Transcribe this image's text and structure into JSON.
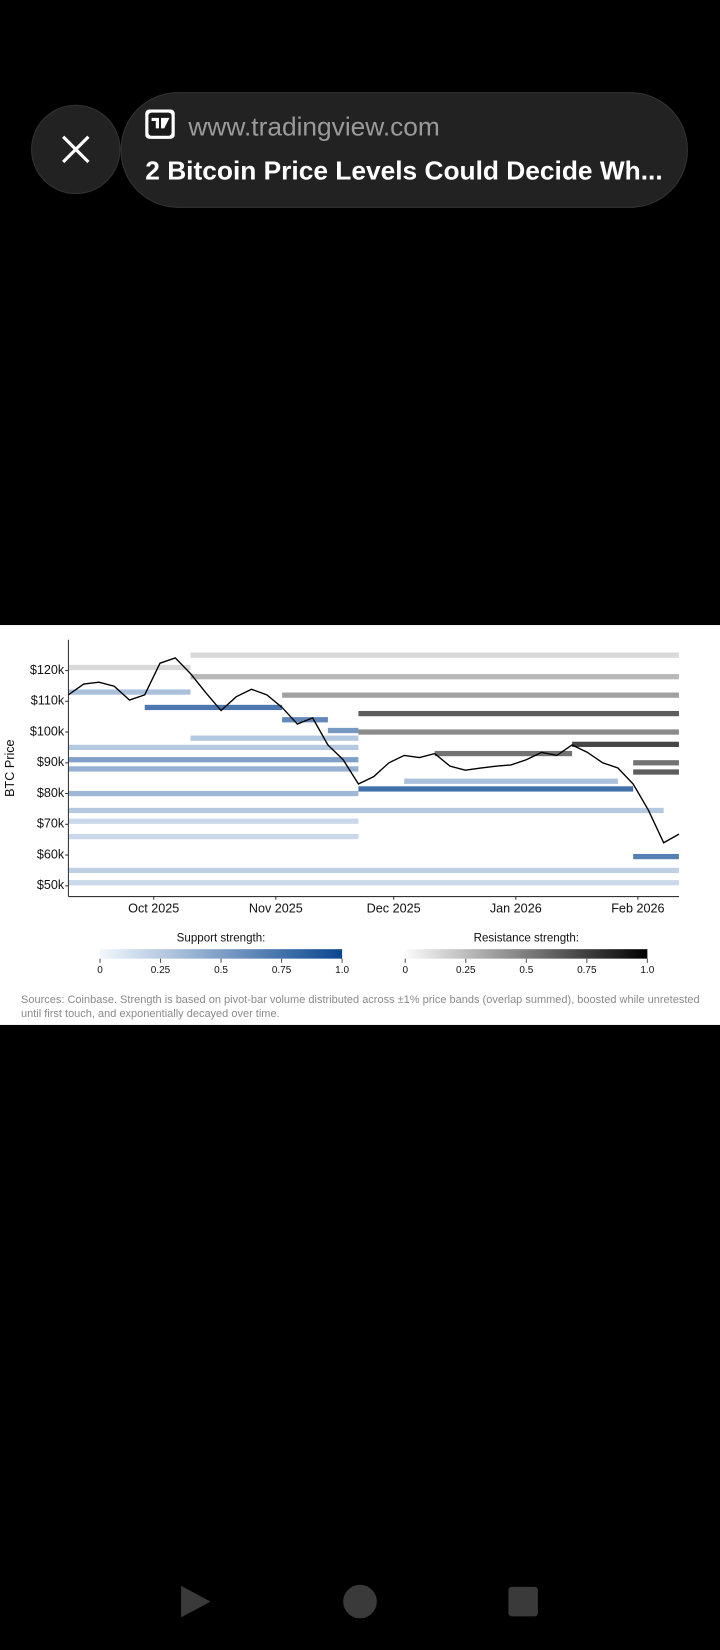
{
  "browser_bar": {
    "url": "www.tradingview.com",
    "title": "2 Bitcoin Price Levels Could Decide Wh..."
  },
  "chart_data": {
    "type": "line",
    "y_label": "BTC Price",
    "xlim": [
      0,
      40
    ],
    "ylim": [
      46500,
      130000
    ],
    "yticks": [
      {
        "value": 50000,
        "label": "$50k"
      },
      {
        "value": 60000,
        "label": "$60k"
      },
      {
        "value": 70000,
        "label": "$70k"
      },
      {
        "value": 80000,
        "label": "$80k"
      },
      {
        "value": 90000,
        "label": "$90k"
      },
      {
        "value": 100000,
        "label": "$100k"
      },
      {
        "value": 110000,
        "label": "$110k"
      },
      {
        "value": 120000,
        "label": "$120k"
      }
    ],
    "xticks": [
      {
        "value": 5.59,
        "label": "Oct 2025"
      },
      {
        "value": 13.59,
        "label": "Nov 2025"
      },
      {
        "value": 21.31,
        "label": "Dec 2025"
      },
      {
        "value": 29.31,
        "label": "Jan 2026"
      },
      {
        "value": 37.31,
        "label": "Feb 2026"
      }
    ],
    "series": [
      {
        "color": "#000000",
        "values": [
          112100,
          115600,
          116200,
          114900,
          110400,
          112100,
          122400,
          124100,
          119000,
          112800,
          107000,
          111500,
          113900,
          112100,
          108000,
          102600,
          104600,
          95800,
          91000,
          83100,
          85500,
          90000,
          92400,
          91700,
          93000,
          88900,
          87600,
          88300,
          88900,
          89300,
          91000,
          93400,
          92400,
          95800,
          93400,
          90000,
          88300,
          83100,
          74600,
          64000,
          66800
        ]
      }
    ],
    "support_colors": [
      "#f2f7fd",
      "#0a4690"
    ],
    "resistance_colors": [
      "#fbfbfb",
      "#000000"
    ],
    "support_levels": [
      {
        "price": 113000,
        "start": 0,
        "end": 8,
        "strength": 0.35
      },
      {
        "price": 108000,
        "start": 5,
        "end": 14,
        "strength": 0.8
      },
      {
        "price": 104000,
        "start": 14,
        "end": 17,
        "strength": 0.7
      },
      {
        "price": 100500,
        "start": 17,
        "end": 19,
        "strength": 0.6
      },
      {
        "price": 98000,
        "start": 8,
        "end": 19,
        "strength": 0.3
      },
      {
        "price": 95000,
        "start": 0,
        "end": 19,
        "strength": 0.3
      },
      {
        "price": 91000,
        "start": 0,
        "end": 19,
        "strength": 0.55
      },
      {
        "price": 88000,
        "start": 0,
        "end": 19,
        "strength": 0.45
      },
      {
        "price": 84000,
        "start": 22,
        "end": 36,
        "strength": 0.35
      },
      {
        "price": 81500,
        "start": 19,
        "end": 37,
        "strength": 0.85
      },
      {
        "price": 80000,
        "start": 0,
        "end": 19,
        "strength": 0.4
      },
      {
        "price": 74500,
        "start": 0,
        "end": 39,
        "strength": 0.3
      },
      {
        "price": 71000,
        "start": 0,
        "end": 19,
        "strength": 0.2
      },
      {
        "price": 66000,
        "start": 0,
        "end": 19,
        "strength": 0.2
      },
      {
        "price": 59500,
        "start": 37,
        "end": 40,
        "strength": 0.75
      },
      {
        "price": 55000,
        "start": 0,
        "end": 40,
        "strength": 0.25
      },
      {
        "price": 51000,
        "start": 0,
        "end": 40,
        "strength": 0.2
      }
    ],
    "resistance_levels": [
      {
        "price": 125000,
        "start": 8,
        "end": 40,
        "strength": 0.15
      },
      {
        "price": 121000,
        "start": 0,
        "end": 8,
        "strength": 0.15
      },
      {
        "price": 118000,
        "start": 8,
        "end": 40,
        "strength": 0.3
      },
      {
        "price": 112000,
        "start": 14,
        "end": 40,
        "strength": 0.4
      },
      {
        "price": 106000,
        "start": 19,
        "end": 40,
        "strength": 0.7
      },
      {
        "price": 100000,
        "start": 19,
        "end": 40,
        "strength": 0.5
      },
      {
        "price": 96000,
        "start": 33,
        "end": 40,
        "strength": 0.8
      },
      {
        "price": 93000,
        "start": 24,
        "end": 33,
        "strength": 0.6
      },
      {
        "price": 90000,
        "start": 37,
        "end": 40,
        "strength": 0.6
      },
      {
        "price": 87000,
        "start": 37,
        "end": 40,
        "strength": 0.7
      }
    ],
    "support_legend": {
      "title": "Support strength:",
      "ticks": [
        0,
        0.25,
        0.5,
        0.75,
        {
          "value": 1,
          "label": "1.0"
        }
      ]
    },
    "resistance_legend": {
      "title": "Resistance strength:",
      "ticks": [
        0,
        0.25,
        0.5,
        0.75,
        {
          "value": 1,
          "label": "1.0"
        }
      ]
    },
    "source": "Sources: Coinbase. Strength is based on pivot-bar volume distributed across ±1% price bands (overlap summed), boosted while unretested until first touch, and exponentially decayed over time."
  }
}
